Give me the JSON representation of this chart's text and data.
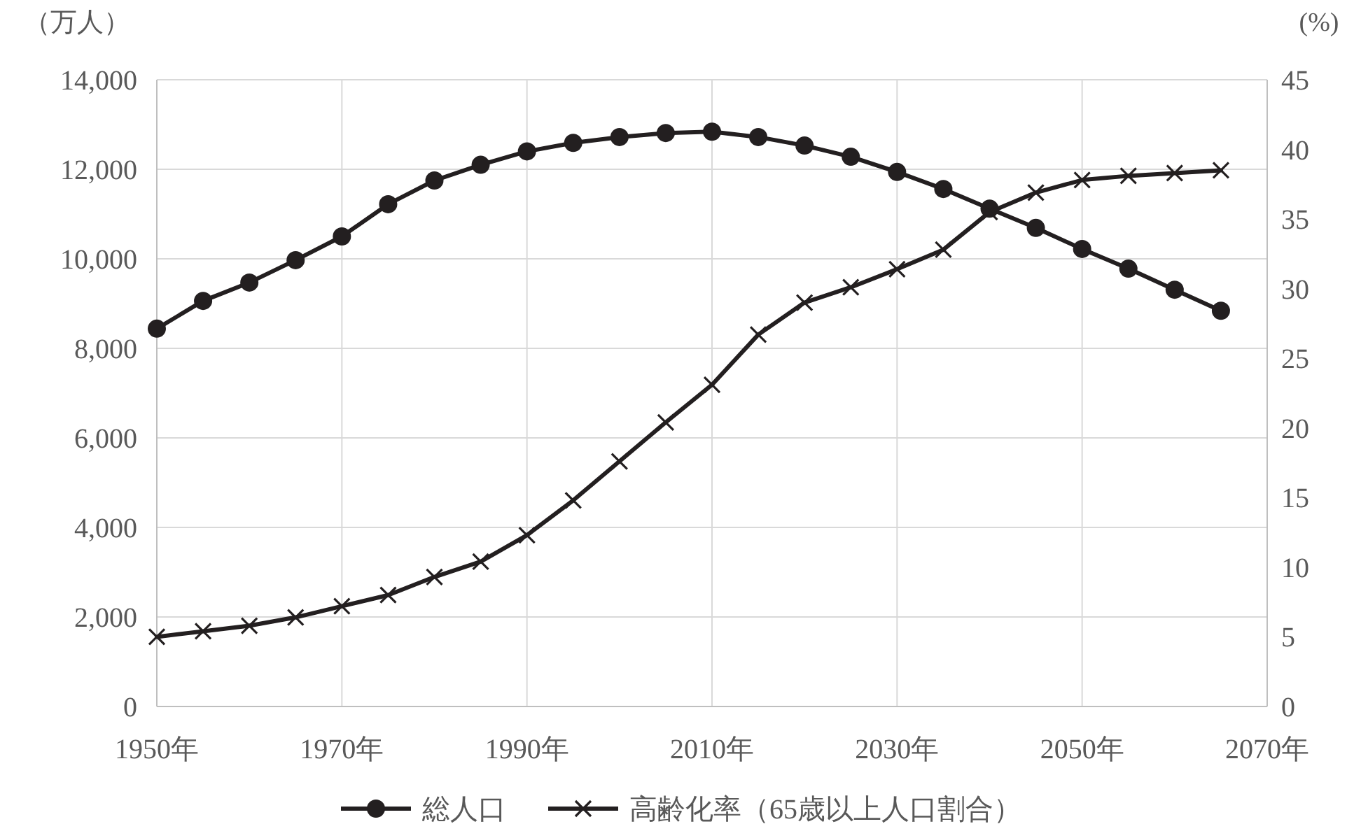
{
  "chart_data": {
    "type": "line",
    "ylabel": "（万人）",
    "y2label": "(%)",
    "x": [
      1950,
      1955,
      1960,
      1965,
      1970,
      1975,
      1980,
      1985,
      1990,
      1995,
      2000,
      2005,
      2010,
      2015,
      2020,
      2025,
      2030,
      2035,
      2040,
      2045,
      2050,
      2055,
      2060,
      2065
    ],
    "xlim": [
      1950,
      2070
    ],
    "xticks": [
      {
        "value": 1950,
        "label": "1950年"
      },
      {
        "value": 1970,
        "label": "1970年"
      },
      {
        "value": 1990,
        "label": "1990年"
      },
      {
        "value": 2010,
        "label": "2010年"
      },
      {
        "value": 2030,
        "label": "2030年"
      },
      {
        "value": 2050,
        "label": "2050年"
      },
      {
        "value": 2070,
        "label": "2070年"
      }
    ],
    "ylim": [
      0,
      14000
    ],
    "yticks": [
      0,
      {
        "value": 2000,
        "label": "2,000"
      },
      {
        "value": 4000,
        "label": "4,000"
      },
      {
        "value": 6000,
        "label": "6,000"
      },
      {
        "value": 8000,
        "label": "8,000"
      },
      {
        "value": 10000,
        "label": "10,000"
      },
      {
        "value": 12000,
        "label": "12,000"
      },
      {
        "value": 14000,
        "label": "14,000"
      }
    ],
    "y2lim": [
      0,
      45
    ],
    "y2ticks": [
      0,
      5,
      10,
      15,
      20,
      25,
      30,
      35,
      40,
      45
    ],
    "grid": true,
    "legend": "bottom",
    "line_style": "solid",
    "series": [
      {
        "name": "総人口",
        "color": "#231f20",
        "marker": "circle",
        "values": [
          8440,
          9060,
          9470,
          9970,
          10500,
          11220,
          11750,
          12100,
          12400,
          12590,
          12720,
          12810,
          12840,
          12720,
          12530,
          12280,
          11940,
          11560,
          11120,
          10690,
          10220,
          9780,
          9310,
          8840
        ]
      },
      {
        "name": "高齢化率（65歳以上人口割合）",
        "color": "#231f20",
        "marker": "cross",
        "axis": "y2",
        "values": [
          5.0,
          5.4,
          5.8,
          6.4,
          7.2,
          8.0,
          9.3,
          10.4,
          12.3,
          14.8,
          17.6,
          20.4,
          23.1,
          26.7,
          29.0,
          30.1,
          31.4,
          32.8,
          35.5,
          36.9,
          37.8,
          38.1,
          38.3,
          38.5
        ]
      }
    ]
  }
}
